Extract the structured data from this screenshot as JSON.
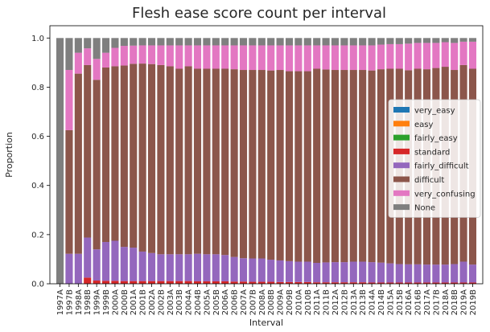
{
  "chart_data": {
    "type": "bar",
    "stacked": true,
    "title": "Flesh ease score count per interval",
    "xlabel": "Interval",
    "ylabel": "Proportion",
    "ylim": [
      0,
      1.05
    ],
    "yticks": [
      "0.0",
      "0.2",
      "0.4",
      "0.6",
      "0.8",
      "1.0"
    ],
    "legend_position": "center-right",
    "categories": [
      "1997A",
      "1997B",
      "1998A",
      "1998B",
      "1999A",
      "1999B",
      "2000A",
      "2000B",
      "2001A",
      "2001B",
      "2002A",
      "2002B",
      "2003A",
      "2003B",
      "2004A",
      "2004B",
      "2005A",
      "2005B",
      "2006A",
      "2006B",
      "2007A",
      "2007B",
      "2008A",
      "2008B",
      "2009A",
      "2009B",
      "2010A",
      "2010B",
      "2011A",
      "2011B",
      "2012A",
      "2012B",
      "2013A",
      "2013B",
      "2014A",
      "2014B",
      "2015A",
      "2015B",
      "2016A",
      "2016B",
      "2017A",
      "2017B",
      "2018A",
      "2018B",
      "2019A",
      "2019B"
    ],
    "series": [
      {
        "name": "very_easy",
        "color": "#1f77b4",
        "values": [
          0,
          0,
          0,
          0,
          0,
          0,
          0,
          0,
          0,
          0,
          0,
          0,
          0,
          0,
          0,
          0,
          0,
          0,
          0,
          0,
          0,
          0,
          0,
          0,
          0,
          0,
          0,
          0,
          0,
          0,
          0,
          0,
          0,
          0,
          0,
          0,
          0,
          0,
          0,
          0,
          0,
          0,
          0,
          0,
          0,
          0
        ]
      },
      {
        "name": "easy",
        "color": "#ff7f0e",
        "values": [
          0,
          0,
          0,
          0,
          0,
          0,
          0,
          0,
          0,
          0,
          0,
          0,
          0,
          0,
          0,
          0,
          0,
          0,
          0,
          0,
          0,
          0,
          0,
          0,
          0,
          0,
          0,
          0,
          0,
          0,
          0,
          0,
          0,
          0,
          0,
          0,
          0,
          0,
          0,
          0,
          0,
          0,
          0,
          0,
          0,
          0
        ]
      },
      {
        "name": "fairly_easy",
        "color": "#2ca02c",
        "values": [
          0,
          0,
          0,
          0,
          0,
          0,
          0,
          0,
          0,
          0,
          0,
          0,
          0,
          0,
          0,
          0,
          0,
          0,
          0,
          0,
          0,
          0,
          0,
          0,
          0,
          0,
          0,
          0,
          0,
          0,
          0,
          0,
          0,
          0,
          0,
          0,
          0,
          0,
          0,
          0,
          0,
          0,
          0,
          0,
          0,
          0
        ]
      },
      {
        "name": "standard",
        "color": "#d62728",
        "values": [
          0,
          0,
          0,
          0.025,
          0.013,
          0.012,
          0.012,
          0.011,
          0.011,
          0.011,
          0.011,
          0.011,
          0.011,
          0.011,
          0.011,
          0.01,
          0.01,
          0.01,
          0.01,
          0.009,
          0.009,
          0.008,
          0.008,
          0.008,
          0.007,
          0.007,
          0.007,
          0.007,
          0.006,
          0.006,
          0.006,
          0.006,
          0.006,
          0.006,
          0.005,
          0.005,
          0.005,
          0.005,
          0.005,
          0.005,
          0.005,
          0.005,
          0.005,
          0.005,
          0.005,
          0.005
        ]
      },
      {
        "name": "fairly_difficult",
        "color": "#9467bd",
        "values": [
          0,
          0.122,
          0.122,
          0.163,
          0.127,
          0.158,
          0.163,
          0.139,
          0.136,
          0.12,
          0.114,
          0.109,
          0.109,
          0.109,
          0.109,
          0.112,
          0.11,
          0.11,
          0.107,
          0.1,
          0.095,
          0.095,
          0.095,
          0.09,
          0.088,
          0.085,
          0.083,
          0.083,
          0.079,
          0.081,
          0.082,
          0.082,
          0.084,
          0.084,
          0.083,
          0.081,
          0.078,
          0.075,
          0.074,
          0.074,
          0.073,
          0.073,
          0.073,
          0.075,
          0.085,
          0.073
        ]
      },
      {
        "name": "difficult",
        "color": "#8c564b",
        "values": [
          0,
          0.503,
          0.733,
          0.702,
          0.69,
          0.71,
          0.71,
          0.738,
          0.748,
          0.765,
          0.769,
          0.77,
          0.765,
          0.755,
          0.765,
          0.753,
          0.755,
          0.755,
          0.758,
          0.764,
          0.766,
          0.767,
          0.767,
          0.77,
          0.775,
          0.773,
          0.775,
          0.775,
          0.79,
          0.785,
          0.782,
          0.782,
          0.78,
          0.78,
          0.78,
          0.787,
          0.792,
          0.795,
          0.79,
          0.796,
          0.795,
          0.8,
          0.805,
          0.79,
          0.8,
          0.797
        ]
      },
      {
        "name": "very_confusing",
        "color": "#e377c2",
        "values": [
          0,
          0.245,
          0.085,
          0.068,
          0.085,
          0.06,
          0.075,
          0.08,
          0.074,
          0.074,
          0.076,
          0.08,
          0.085,
          0.095,
          0.085,
          0.095,
          0.095,
          0.095,
          0.095,
          0.097,
          0.1,
          0.1,
          0.1,
          0.102,
          0.1,
          0.105,
          0.105,
          0.105,
          0.095,
          0.098,
          0.1,
          0.1,
          0.1,
          0.1,
          0.102,
          0.1,
          0.1,
          0.1,
          0.108,
          0.105,
          0.107,
          0.102,
          0.1,
          0.11,
          0.095,
          0.11
        ]
      },
      {
        "name": "None",
        "color": "#7f7f7f",
        "values": [
          1,
          0.13,
          0.06,
          0.042,
          0.085,
          0.06,
          0.04,
          0.032,
          0.031,
          0.03,
          0.03,
          0.03,
          0.03,
          0.03,
          0.03,
          0.03,
          0.03,
          0.03,
          0.03,
          0.03,
          0.03,
          0.03,
          0.03,
          0.03,
          0.03,
          0.03,
          0.03,
          0.03,
          0.03,
          0.03,
          0.03,
          0.03,
          0.03,
          0.03,
          0.03,
          0.027,
          0.025,
          0.025,
          0.023,
          0.02,
          0.02,
          0.02,
          0.017,
          0.02,
          0.015,
          0.015
        ]
      }
    ]
  }
}
